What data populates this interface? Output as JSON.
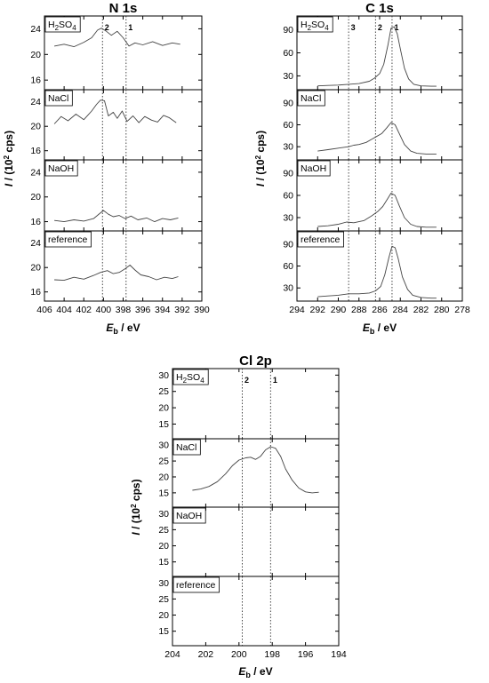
{
  "chart_data": [
    {
      "type": "line",
      "id": "n1s",
      "title": "N 1s",
      "xlabel": "E_b / eV",
      "xlabel_main": "E",
      "xlabel_sub": "b",
      "xlabel_rest": " / eV",
      "ylabel_main": "I",
      "ylabel_rest": " / (10",
      "ylabel_sup": "2",
      "ylabel_end": " cps)",
      "xlim": [
        406,
        390
      ],
      "xticks": [
        406,
        404,
        402,
        400,
        398,
        396,
        394,
        392,
        390
      ],
      "ylim": [
        14.5,
        26
      ],
      "yticks": [
        16,
        20,
        24
      ],
      "peak_lines": [
        {
          "x": 400.1,
          "label": "2"
        },
        {
          "x": 397.7,
          "label": "1"
        }
      ],
      "panels": [
        {
          "name": "H2SO4",
          "label_main": "H",
          "label_sub1": "2",
          "label_mid": "SO",
          "label_sub2": "4",
          "x": [
            405.0,
            404.0,
            403.0,
            402.0,
            401.2,
            400.6,
            400.2,
            399.7,
            399.2,
            398.6,
            398.0,
            397.4,
            396.8,
            396.0,
            395.0,
            394.0,
            393.0,
            392.2
          ],
          "y": [
            21.3,
            21.6,
            21.2,
            21.9,
            22.6,
            23.8,
            24.1,
            23.6,
            23.0,
            23.6,
            22.6,
            21.3,
            21.8,
            21.5,
            22.0,
            21.4,
            21.8,
            21.6
          ]
        },
        {
          "name": "NaCl",
          "label_main": "NaCl",
          "x": [
            405.0,
            404.3,
            403.6,
            402.8,
            402.0,
            401.2,
            400.7,
            400.3,
            399.9,
            399.5,
            399.0,
            398.6,
            398.1,
            397.6,
            397.0,
            396.4,
            395.8,
            395.1,
            394.5,
            393.9,
            393.3,
            392.6
          ],
          "y": [
            20.4,
            21.6,
            20.9,
            22.0,
            21.1,
            22.5,
            23.6,
            24.3,
            24.2,
            21.7,
            22.3,
            21.3,
            22.5,
            20.8,
            21.7,
            20.6,
            21.6,
            21.0,
            20.7,
            21.8,
            21.4,
            20.6
          ]
        },
        {
          "name": "NaOH",
          "label_main": "NaOH",
          "x": [
            405.0,
            404.0,
            403.0,
            402.0,
            401.0,
            400.4,
            400.0,
            399.5,
            399.0,
            398.4,
            397.8,
            397.2,
            396.5,
            395.6,
            394.8,
            394.0,
            393.2,
            392.4
          ],
          "y": [
            16.2,
            16.0,
            16.3,
            16.1,
            16.5,
            17.3,
            17.8,
            17.2,
            16.8,
            17.0,
            16.5,
            16.9,
            16.3,
            16.6,
            16.0,
            16.5,
            16.3,
            16.6
          ]
        },
        {
          "name": "reference",
          "label_main": "reference",
          "x": [
            405.0,
            404.0,
            403.0,
            402.0,
            401.0,
            400.3,
            399.6,
            399.0,
            398.4,
            397.8,
            397.3,
            396.8,
            396.2,
            395.4,
            394.6,
            393.8,
            393.0,
            392.4
          ],
          "y": [
            18.0,
            17.9,
            18.4,
            18.1,
            18.7,
            19.2,
            19.5,
            19.0,
            19.2,
            19.8,
            20.4,
            19.6,
            18.8,
            18.5,
            18.0,
            18.4,
            18.2,
            18.5
          ]
        }
      ]
    },
    {
      "type": "line",
      "id": "c1s",
      "title": "C 1s",
      "xlabel": "E_b / eV",
      "xlabel_main": "E",
      "xlabel_sub": "b",
      "xlabel_rest": " / eV",
      "ylabel_main": "I",
      "ylabel_rest": " / (10",
      "ylabel_sup": "2",
      "ylabel_end": " cps)",
      "xlim": [
        294,
        278
      ],
      "xticks": [
        294,
        292,
        290,
        288,
        286,
        284,
        282,
        280,
        278
      ],
      "ylim": [
        12,
        108
      ],
      "yticks": [
        30,
        60,
        90
      ],
      "peak_lines": [
        {
          "x": 289.0,
          "label": "3"
        },
        {
          "x": 286.4,
          "label": "2"
        },
        {
          "x": 284.8,
          "label": "1"
        }
      ],
      "panels": [
        {
          "name": "H2SO4",
          "label_main": "H",
          "label_sub1": "2",
          "label_mid": "SO",
          "label_sub2": "4",
          "x": [
            292.0,
            291.0,
            290.0,
            289.0,
            288.0,
            287.0,
            286.5,
            286.0,
            285.6,
            285.2,
            284.9,
            284.6,
            284.3,
            284.0,
            283.6,
            283.2,
            282.7,
            282.0,
            281.0,
            280.5
          ],
          "y": [
            17,
            17.5,
            18,
            19,
            20,
            23,
            27,
            33,
            45,
            70,
            92,
            94,
            85,
            65,
            40,
            26,
            19,
            17,
            16.5,
            16.5
          ]
        },
        {
          "name": "NaCl",
          "label_main": "NaCl",
          "x": [
            292.0,
            291.0,
            290.0,
            289.0,
            288.5,
            288.0,
            287.3,
            286.8,
            286.3,
            285.8,
            285.3,
            284.9,
            284.5,
            284.1,
            283.6,
            283.0,
            282.4,
            281.5,
            280.5
          ],
          "y": [
            24,
            26,
            28,
            30,
            32,
            33,
            36,
            40,
            44,
            48,
            56,
            63,
            60,
            48,
            33,
            24,
            21,
            20,
            20
          ]
        },
        {
          "name": "NaOH",
          "label_main": "NaOH",
          "x": [
            292.0,
            291.0,
            290.0,
            289.2,
            288.5,
            287.5,
            286.8,
            286.2,
            285.7,
            285.2,
            284.9,
            284.5,
            284.1,
            283.6,
            283.0,
            282.4,
            281.5,
            280.5
          ],
          "y": [
            18,
            19,
            21,
            24,
            23,
            26,
            32,
            38,
            45,
            56,
            63,
            60,
            46,
            30,
            21,
            18,
            17,
            17
          ]
        },
        {
          "name": "reference",
          "label_main": "reference",
          "x": [
            292.0,
            291.0,
            290.0,
            289.0,
            288.0,
            287.0,
            286.4,
            285.9,
            285.5,
            285.1,
            284.8,
            284.5,
            284.2,
            283.8,
            283.3,
            282.8,
            282.0,
            281.0,
            280.5
          ],
          "y": [
            18,
            19,
            20,
            22,
            22,
            23,
            26,
            32,
            48,
            72,
            87,
            85,
            70,
            45,
            28,
            20,
            17,
            16,
            16
          ]
        }
      ]
    },
    {
      "type": "line",
      "id": "cl2p",
      "title": "Cl 2p",
      "xlabel": "E_b / eV",
      "xlabel_main": "E",
      "xlabel_sub": "b",
      "xlabel_rest": " / eV",
      "ylabel_main": "I",
      "ylabel_rest": " / (10",
      "ylabel_sup": "2",
      "ylabel_end": " cps)",
      "xlim": [
        204,
        194
      ],
      "xticks": [
        204,
        202,
        200,
        198,
        196,
        194
      ],
      "ylim": [
        10.5,
        32
      ],
      "yticks": [
        15,
        20,
        25,
        30
      ],
      "peak_lines": [
        {
          "x": 199.8,
          "label": "2"
        },
        {
          "x": 198.1,
          "label": "1"
        }
      ],
      "panels": [
        {
          "name": "H2SO4",
          "label_main": "H",
          "label_sub1": "2",
          "label_mid": "SO",
          "label_sub2": "4",
          "x": [],
          "y": []
        },
        {
          "name": "NaCl",
          "label_main": "NaCl",
          "x": [
            202.8,
            202.3,
            201.8,
            201.3,
            200.8,
            200.4,
            200.0,
            199.6,
            199.3,
            199.0,
            198.7,
            198.4,
            198.1,
            197.8,
            197.5,
            197.2,
            196.8,
            196.4,
            196.0,
            195.6,
            195.2
          ],
          "y": [
            15.8,
            16.2,
            17.0,
            18.5,
            21.0,
            23.5,
            25.3,
            26.0,
            26.2,
            25.5,
            26.5,
            28.5,
            29.5,
            29.0,
            26.5,
            22.5,
            19.0,
            16.5,
            15.3,
            15.0,
            15.2
          ]
        },
        {
          "name": "NaOH",
          "label_main": "NaOH",
          "x": [],
          "y": []
        },
        {
          "name": "reference",
          "label_main": "reference",
          "x": [],
          "y": []
        }
      ]
    }
  ]
}
